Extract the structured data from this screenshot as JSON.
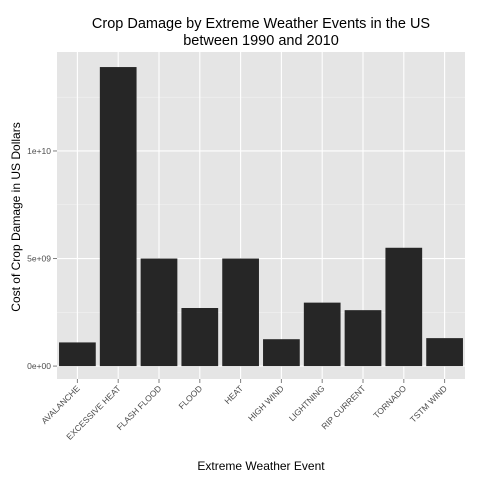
{
  "chart_data": {
    "type": "bar",
    "title": [
      "Crop Damage by Extreme Weather Events in the US",
      "between 1990 and 2010"
    ],
    "xlabel": "Extreme Weather Event",
    "ylabel": "Cost of Crop Damage in US Dollars",
    "categories": [
      "AVALANCHE",
      "EXCESSIVE HEAT",
      "FLASH FLOOD",
      "FLOOD",
      "HEAT",
      "HIGH WIND",
      "LIGHTNING",
      "RIP CURRENT",
      "TORNADO",
      "TSTM WIND"
    ],
    "values": [
      1100000000,
      13900000000,
      5000000000,
      2700000000,
      5000000000,
      1250000000,
      2950000000,
      2600000000,
      5500000000,
      1300000000
    ],
    "ylim": [
      -600000000,
      14600000000
    ],
    "yticks": [
      0,
      5000000000,
      10000000000
    ],
    "ytick_labels": [
      "0e+00",
      "5e+09",
      "1e+10"
    ],
    "grid": true,
    "legend": "none",
    "colors": {
      "panel": "#e5e5e5",
      "grid_major": "#ffffff",
      "grid_minor": "#f2f2f2",
      "bar": "#262626",
      "tick": "#7f7f7f"
    }
  }
}
